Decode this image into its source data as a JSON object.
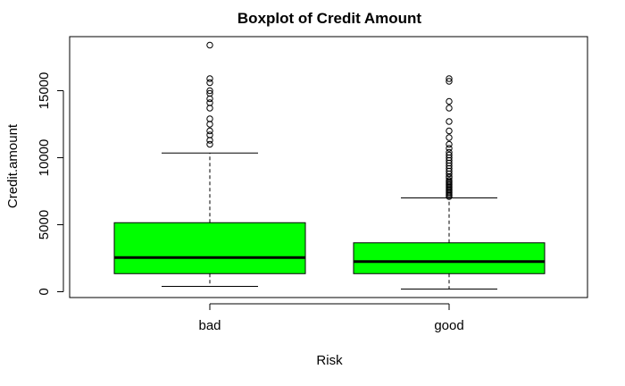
{
  "chart_data": {
    "type": "boxplot",
    "title": "Boxplot of Credit Amount",
    "xlabel": "Risk",
    "ylabel": "Credit.amount",
    "ylim": [
      0,
      18500
    ],
    "yticks": [
      0,
      5000,
      10000,
      15000
    ],
    "ytick_labels": [
      "0",
      "5000",
      "10000",
      "15000"
    ],
    "box_color": "#00ff00",
    "categories": [
      "bad",
      "good"
    ],
    "boxes": [
      {
        "name": "bad",
        "min": 400,
        "q1": 1350,
        "median": 2550,
        "q3": 5150,
        "max": 10350,
        "outliers": [
          11000,
          11300,
          11700,
          12000,
          12500,
          12900,
          13700,
          14100,
          14400,
          14800,
          15000,
          15600,
          15900,
          18400
        ]
      },
      {
        "name": "good",
        "min": 200,
        "q1": 1350,
        "median": 2250,
        "q3": 3650,
        "max": 7000,
        "outliers": [
          7100,
          7200,
          7300,
          7400,
          7500,
          7600,
          7700,
          7800,
          7900,
          8000,
          8100,
          8200,
          8300,
          8500,
          8600,
          8800,
          9000,
          9200,
          9400,
          9600,
          9800,
          10000,
          10200,
          10400,
          10700,
          11000,
          11500,
          12000,
          12700,
          13700,
          14200,
          15700,
          15900
        ]
      }
    ]
  }
}
